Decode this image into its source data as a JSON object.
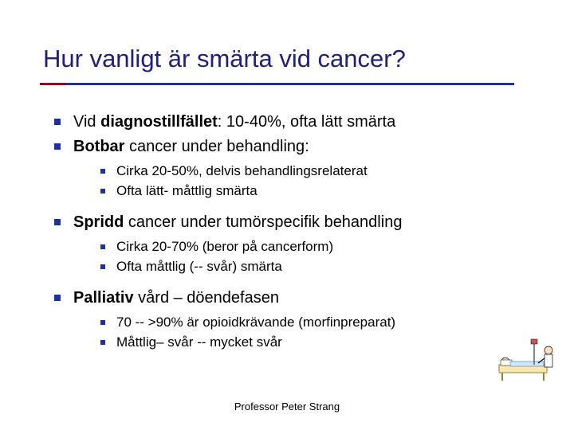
{
  "colors": {
    "title": "#20207a",
    "body_text": "#000000",
    "accent_short": "#a00020",
    "accent_long": "#2030a0",
    "bullet": "#2030a0",
    "footer": "#000000",
    "background": "#ffffff"
  },
  "title": "Hur vanligt är smärta vid cancer?",
  "bullets": [
    {
      "runs": [
        {
          "text": "Vid ",
          "bold": false
        },
        {
          "text": "diagnostillfället",
          "bold": true
        },
        {
          "text": ": 10-40%, ofta lätt smärta",
          "bold": false
        }
      ]
    },
    {
      "runs": [
        {
          "text": "Botbar",
          "bold": true
        },
        {
          "text": " cancer under behandling:",
          "bold": false
        }
      ],
      "sub": [
        "Cirka 20-50%, delvis behandlingsrelaterat",
        "Ofta lätt- måttlig smärta"
      ]
    },
    {
      "runs": [
        {
          "text": "Spridd",
          "bold": true
        },
        {
          "text": " cancer under tumörspecifik behandling",
          "bold": false
        }
      ],
      "sub": [
        "Cirka 20-70% (beror på cancerform)",
        "Ofta måttlig (-- svår) smärta"
      ]
    },
    {
      "runs": [
        {
          "text": "Palliativ",
          "bold": true
        },
        {
          "text": " vård – döendefasen",
          "bold": false
        }
      ],
      "sub": [
        "70 -- >90% är opioidkrävande (morfinpreparat)",
        "Måttlig– svår -- mycket svår"
      ]
    }
  ],
  "footer": "Professor Peter Strang",
  "clipart": {
    "name": "doctor-patient-bed-clipart"
  }
}
